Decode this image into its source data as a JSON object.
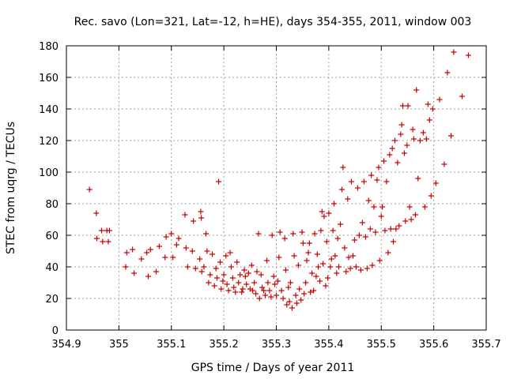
{
  "chart_data": {
    "type": "scatter",
    "title": "Rec. savo (Lon=321, Lat=-12, h=HE), days 354-355, 2011, window 003",
    "xlabel": "GPS time / Days of year 2011",
    "ylabel": "STEC from uqrg / TECUs",
    "xlim": [
      354.9,
      355.7
    ],
    "ylim": [
      0,
      180
    ],
    "xticks": [
      354.9,
      355.0,
      355.1,
      355.2,
      355.3,
      355.4,
      355.5,
      355.6,
      355.7
    ],
    "xtick_labels": [
      "354.9",
      "355",
      "355.1",
      "355.2",
      "355.3",
      "355.4",
      "355.5",
      "355.6",
      "355.7"
    ],
    "yticks": [
      0,
      20,
      40,
      60,
      80,
      100,
      120,
      140,
      160,
      180
    ],
    "ytick_labels": [
      "0",
      "20",
      "40",
      "60",
      "80",
      "100",
      "120",
      "140",
      "160",
      "180"
    ],
    "grid": true,
    "marker": "+",
    "color": "#cc0000",
    "points": [
      [
        354.944,
        89
      ],
      [
        354.957,
        74
      ],
      [
        354.958,
        58
      ],
      [
        354.967,
        63
      ],
      [
        354.969,
        56
      ],
      [
        354.977,
        63
      ],
      [
        354.98,
        56
      ],
      [
        354.982,
        63
      ],
      [
        355.013,
        40
      ],
      [
        355.015,
        49
      ],
      [
        355.026,
        51
      ],
      [
        355.029,
        36
      ],
      [
        355.043,
        45
      ],
      [
        355.053,
        49
      ],
      [
        355.056,
        34
      ],
      [
        355.06,
        51
      ],
      [
        355.071,
        37
      ],
      [
        355.077,
        53
      ],
      [
        355.088,
        46
      ],
      [
        355.09,
        59
      ],
      [
        355.1,
        61
      ],
      [
        355.103,
        46
      ],
      [
        355.11,
        54
      ],
      [
        355.114,
        58
      ],
      [
        355.126,
        73
      ],
      [
        355.128,
        52
      ],
      [
        355.131,
        40
      ],
      [
        355.14,
        50
      ],
      [
        355.142,
        69
      ],
      [
        355.146,
        39
      ],
      [
        355.154,
        45
      ],
      [
        355.156,
        75
      ],
      [
        355.157,
        71
      ],
      [
        355.158,
        37
      ],
      [
        355.162,
        40
      ],
      [
        355.166,
        61
      ],
      [
        355.168,
        50
      ],
      [
        355.171,
        30
      ],
      [
        355.174,
        35
      ],
      [
        355.178,
        48
      ],
      [
        355.182,
        28
      ],
      [
        355.185,
        39
      ],
      [
        355.187,
        33
      ],
      [
        355.19,
        94
      ],
      [
        355.193,
        43
      ],
      [
        355.195,
        26
      ],
      [
        355.198,
        31
      ],
      [
        355.2,
        35
      ],
      [
        355.204,
        47
      ],
      [
        355.206,
        29
      ],
      [
        355.209,
        25
      ],
      [
        355.212,
        49
      ],
      [
        355.214,
        40
      ],
      [
        355.217,
        33
      ],
      [
        355.219,
        27
      ],
      [
        355.222,
        24
      ],
      [
        355.225,
        43
      ],
      [
        355.228,
        30
      ],
      [
        355.231,
        35
      ],
      [
        355.234,
        24
      ],
      [
        355.236,
        26
      ],
      [
        355.239,
        38
      ],
      [
        355.241,
        34
      ],
      [
        355.243,
        29
      ],
      [
        355.247,
        36
      ],
      [
        355.25,
        26
      ],
      [
        355.253,
        41
      ],
      [
        355.255,
        25
      ],
      [
        355.258,
        30
      ],
      [
        355.261,
        23
      ],
      [
        355.263,
        37
      ],
      [
        355.266,
        61
      ],
      [
        355.268,
        20
      ],
      [
        355.271,
        35
      ],
      [
        355.273,
        27
      ],
      [
        355.276,
        25
      ],
      [
        355.279,
        22
      ],
      [
        355.282,
        44
      ],
      [
        355.284,
        30
      ],
      [
        355.287,
        25
      ],
      [
        355.29,
        21
      ],
      [
        355.292,
        60
      ],
      [
        355.295,
        34
      ],
      [
        355.297,
        29
      ],
      [
        355.3,
        22
      ],
      [
        355.303,
        31
      ],
      [
        355.305,
        46
      ],
      [
        355.307,
        62
      ],
      [
        355.31,
        25
      ],
      [
        355.313,
        20
      ],
      [
        355.316,
        58
      ],
      [
        355.318,
        38
      ],
      [
        355.32,
        16
      ],
      [
        355.323,
        27
      ],
      [
        355.325,
        18
      ],
      [
        355.327,
        30
      ],
      [
        355.33,
        14
      ],
      [
        355.332,
        61
      ],
      [
        355.334,
        47
      ],
      [
        355.337,
        22
      ],
      [
        355.339,
        17
      ],
      [
        355.342,
        41
      ],
      [
        355.344,
        26
      ],
      [
        355.347,
        19
      ],
      [
        355.349,
        62
      ],
      [
        355.351,
        55
      ],
      [
        355.353,
        23
      ],
      [
        355.356,
        30
      ],
      [
        355.358,
        44
      ],
      [
        355.361,
        49
      ],
      [
        355.363,
        55
      ],
      [
        355.365,
        24
      ],
      [
        355.368,
        36
      ],
      [
        355.371,
        25
      ],
      [
        355.373,
        61
      ],
      [
        355.376,
        34
      ],
      [
        355.378,
        48
      ],
      [
        355.38,
        40
      ],
      [
        355.383,
        31
      ],
      [
        355.385,
        63
      ],
      [
        355.387,
        75
      ],
      [
        355.389,
        42
      ],
      [
        355.391,
        72
      ],
      [
        355.394,
        28
      ],
      [
        355.396,
        56
      ],
      [
        355.398,
        33
      ],
      [
        355.4,
        74
      ],
      [
        355.403,
        40
      ],
      [
        355.405,
        45
      ],
      [
        355.408,
        63
      ],
      [
        355.41,
        80
      ],
      [
        355.412,
        47
      ],
      [
        355.415,
        36
      ],
      [
        355.417,
        58
      ],
      [
        355.419,
        40
      ],
      [
        355.422,
        67
      ],
      [
        355.425,
        89
      ],
      [
        355.427,
        103
      ],
      [
        355.43,
        52
      ],
      [
        355.433,
        37
      ],
      [
        355.436,
        83
      ],
      [
        355.438,
        46
      ],
      [
        355.441,
        39
      ],
      [
        355.443,
        94
      ],
      [
        355.446,
        47
      ],
      [
        355.449,
        57
      ],
      [
        355.452,
        40
      ],
      [
        355.455,
        90
      ],
      [
        355.458,
        60
      ],
      [
        355.461,
        38
      ],
      [
        355.464,
        68
      ],
      [
        355.467,
        94
      ],
      [
        355.47,
        59
      ],
      [
        355.473,
        39
      ],
      [
        355.476,
        82
      ],
      [
        355.479,
        64
      ],
      [
        355.481,
        98
      ],
      [
        355.483,
        41
      ],
      [
        355.486,
        78
      ],
      [
        355.489,
        62
      ],
      [
        355.492,
        95
      ],
      [
        355.495,
        103
      ],
      [
        355.497,
        44
      ],
      [
        355.5,
        72
      ],
      [
        355.502,
        78
      ],
      [
        355.505,
        107
      ],
      [
        355.507,
        63
      ],
      [
        355.51,
        94
      ],
      [
        355.513,
        49
      ],
      [
        355.516,
        111
      ],
      [
        355.518,
        64
      ],
      [
        355.521,
        115
      ],
      [
        355.523,
        56
      ],
      [
        355.526,
        120
      ],
      [
        355.528,
        64
      ],
      [
        355.531,
        106
      ],
      [
        355.534,
        66
      ],
      [
        355.537,
        124
      ],
      [
        355.539,
        130
      ],
      [
        355.541,
        142
      ],
      [
        355.544,
        112
      ],
      [
        355.546,
        69
      ],
      [
        355.549,
        117
      ],
      [
        355.551,
        142
      ],
      [
        355.554,
        78
      ],
      [
        355.557,
        70
      ],
      [
        355.56,
        127
      ],
      [
        355.562,
        121
      ],
      [
        355.565,
        73
      ],
      [
        355.567,
        152
      ],
      [
        355.57,
        96
      ],
      [
        355.574,
        120
      ],
      [
        355.58,
        125
      ],
      [
        355.583,
        78
      ],
      [
        355.586,
        121
      ],
      [
        355.589,
        143
      ],
      [
        355.592,
        133
      ],
      [
        355.595,
        85
      ],
      [
        355.598,
        140
      ],
      [
        355.604,
        93
      ],
      [
        355.611,
        146
      ],
      [
        355.62,
        105
      ],
      [
        355.626,
        163
      ],
      [
        355.633,
        123
      ],
      [
        355.638,
        176
      ],
      [
        355.654,
        148
      ],
      [
        355.666,
        174
      ]
    ]
  }
}
